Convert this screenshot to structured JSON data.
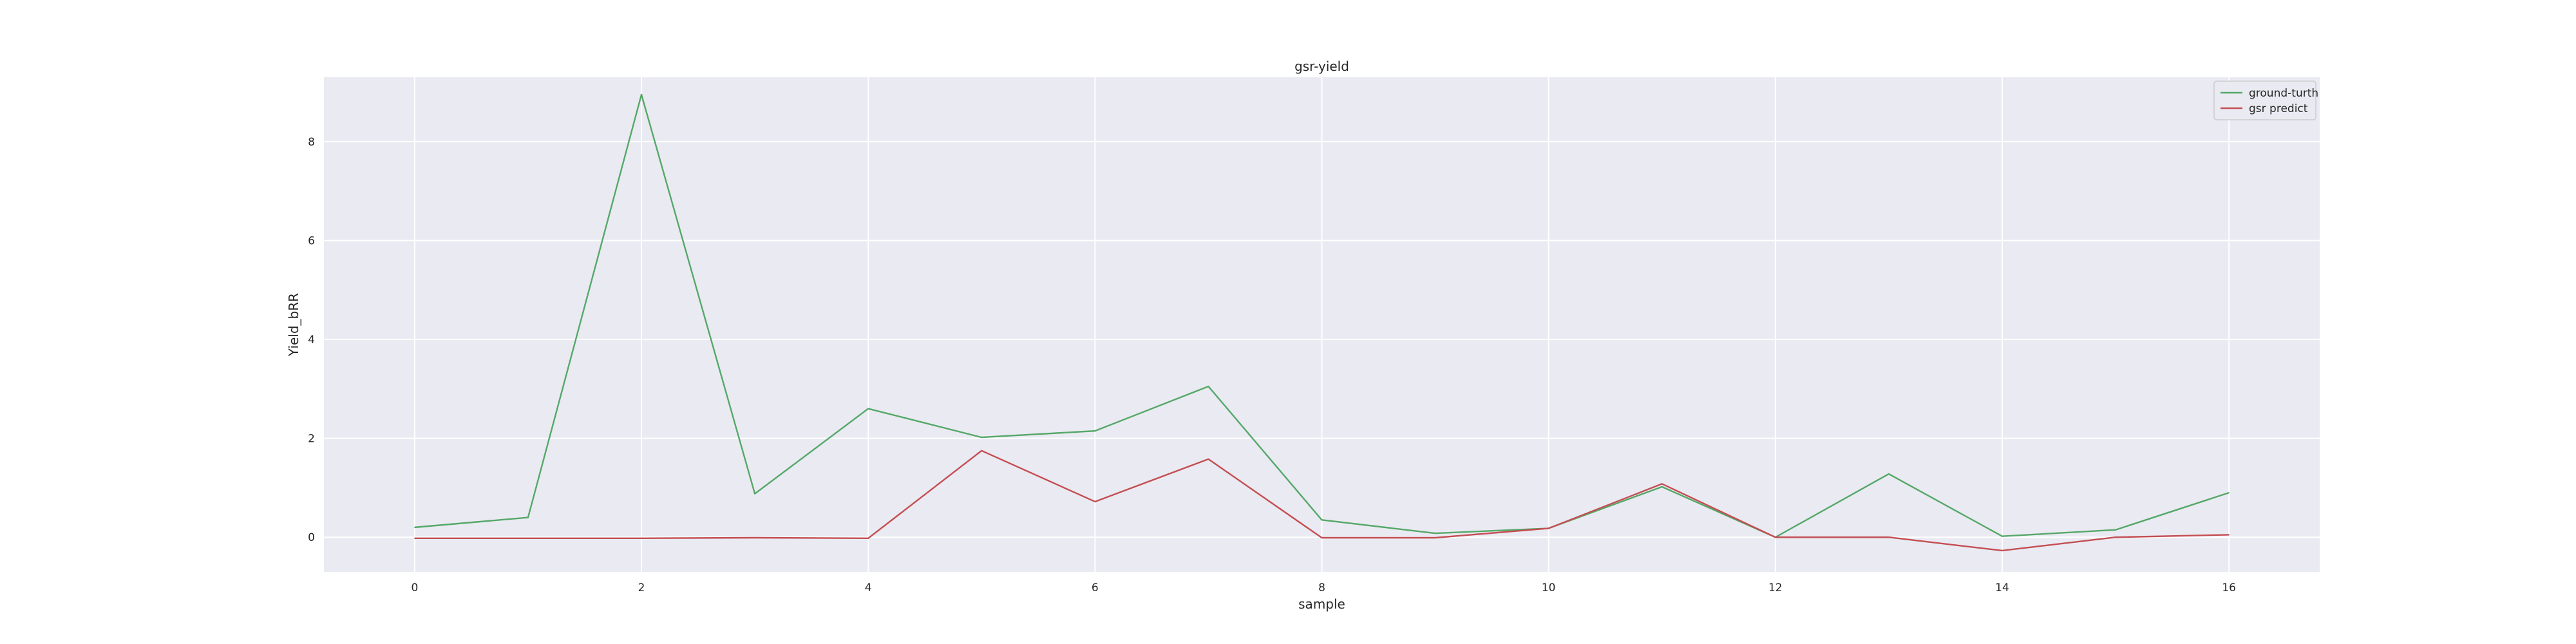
{
  "chart_data": {
    "type": "line",
    "title": "gsr-yield",
    "xlabel": "sample",
    "ylabel": "Yield_bRR",
    "x": [
      0,
      1,
      2,
      3,
      4,
      5,
      6,
      7,
      8,
      9,
      10,
      11,
      12,
      13,
      14,
      15,
      16
    ],
    "xlim": [
      -0.8,
      16.8
    ],
    "ylim": [
      -0.7,
      9.3
    ],
    "xticks": [
      0,
      2,
      4,
      6,
      8,
      10,
      12,
      14,
      16
    ],
    "yticks": [
      0,
      2,
      4,
      6,
      8
    ],
    "grid": true,
    "legend_position": "top-right",
    "series": [
      {
        "name": "ground-turth",
        "color": "#55a868",
        "values": [
          0.2,
          0.4,
          8.95,
          0.88,
          2.6,
          2.02,
          2.15,
          3.05,
          0.35,
          0.08,
          0.18,
          1.02,
          0.0,
          1.28,
          0.02,
          0.15,
          0.9
        ]
      },
      {
        "name": "gsr predict",
        "color": "#c44e52",
        "values": [
          -0.02,
          -0.02,
          -0.02,
          -0.01,
          -0.02,
          1.75,
          0.72,
          1.58,
          -0.01,
          -0.01,
          0.18,
          1.08,
          0.0,
          0.0,
          -0.27,
          0.0,
          0.05
        ]
      }
    ]
  },
  "colors": {
    "plot_background": "#eaeaf2",
    "grid": "#ffffff",
    "text": "#262626"
  }
}
